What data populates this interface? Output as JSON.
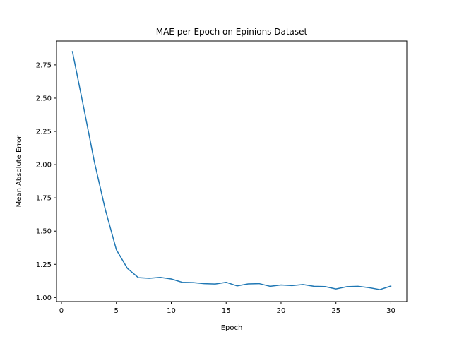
{
  "chart_data": {
    "type": "line",
    "title": "MAE per Epoch on Epinions Dataset",
    "xlabel": "Epoch",
    "ylabel": "Mean Absolute Error",
    "xlim": [
      -0.45,
      31.45
    ],
    "ylim": [
      0.97,
      2.93
    ],
    "xticks": [
      0,
      5,
      10,
      15,
      20,
      25,
      30
    ],
    "xtick_labels": [
      "0",
      "5",
      "10",
      "15",
      "20",
      "25",
      "30"
    ],
    "yticks": [
      1.0,
      1.25,
      1.5,
      1.75,
      2.0,
      2.25,
      2.5,
      2.75
    ],
    "ytick_labels": [
      "1.00",
      "1.25",
      "1.50",
      "1.75",
      "2.00",
      "2.25",
      "2.50",
      "2.75"
    ],
    "grid": false,
    "line_color": "#1f77b4",
    "series": [
      {
        "x": [
          1,
          2,
          3,
          4,
          5,
          6,
          7,
          8,
          9,
          10,
          11,
          12,
          13,
          14,
          15,
          16,
          17,
          18,
          19,
          20,
          21,
          22,
          23,
          24,
          25,
          26,
          27,
          28,
          29,
          30
        ],
        "y": [
          2.85,
          2.44,
          2.02,
          1.66,
          1.36,
          1.22,
          1.15,
          1.145,
          1.152,
          1.14,
          1.115,
          1.113,
          1.105,
          1.102,
          1.115,
          1.088,
          1.103,
          1.105,
          1.085,
          1.095,
          1.09,
          1.098,
          1.085,
          1.083,
          1.065,
          1.082,
          1.085,
          1.075,
          1.06,
          1.087
        ]
      }
    ]
  }
}
